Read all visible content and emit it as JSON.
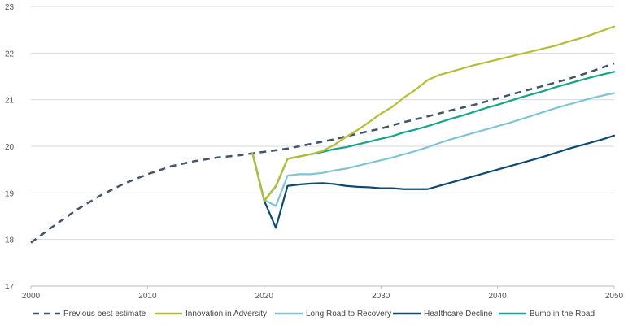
{
  "chart_data": {
    "type": "line",
    "title": "",
    "xlabel": "",
    "ylabel": "",
    "xlim": [
      2000,
      2050
    ],
    "ylim": [
      17,
      23
    ],
    "x_ticks": [
      "2000",
      "2010",
      "2020",
      "2030",
      "2040",
      "2050"
    ],
    "y_ticks": [
      "17",
      "18",
      "19",
      "20",
      "21",
      "22",
      "23"
    ],
    "grid": "horizontal",
    "legend_position": "bottom",
    "series": [
      {
        "name": "Previous best estimate",
        "color": "#44546a",
        "style": "dashed",
        "points": [
          [
            2000,
            17.93
          ],
          [
            2002,
            18.3
          ],
          [
            2004,
            18.65
          ],
          [
            2006,
            18.95
          ],
          [
            2008,
            19.2
          ],
          [
            2010,
            19.4
          ],
          [
            2012,
            19.57
          ],
          [
            2014,
            19.68
          ],
          [
            2016,
            19.76
          ],
          [
            2018,
            19.81
          ],
          [
            2019,
            19.85
          ],
          [
            2020,
            19.88
          ],
          [
            2022,
            19.95
          ],
          [
            2024,
            20.05
          ],
          [
            2026,
            20.15
          ],
          [
            2028,
            20.27
          ],
          [
            2030,
            20.38
          ],
          [
            2032,
            20.52
          ],
          [
            2034,
            20.64
          ],
          [
            2036,
            20.77
          ],
          [
            2038,
            20.89
          ],
          [
            2040,
            21.03
          ],
          [
            2042,
            21.17
          ],
          [
            2044,
            21.3
          ],
          [
            2046,
            21.44
          ],
          [
            2048,
            21.6
          ],
          [
            2050,
            21.78
          ]
        ]
      },
      {
        "name": "Innovation in Adversity",
        "color": "#b5bd35",
        "style": "solid",
        "points": [
          [
            2019,
            19.85
          ],
          [
            2020,
            18.83
          ],
          [
            2021,
            19.15
          ],
          [
            2022,
            19.73
          ],
          [
            2023,
            19.78
          ],
          [
            2024,
            19.83
          ],
          [
            2025,
            19.9
          ],
          [
            2026,
            20.03
          ],
          [
            2027,
            20.2
          ],
          [
            2028,
            20.35
          ],
          [
            2029,
            20.52
          ],
          [
            2030,
            20.7
          ],
          [
            2031,
            20.85
          ],
          [
            2032,
            21.05
          ],
          [
            2033,
            21.22
          ],
          [
            2034,
            21.42
          ],
          [
            2035,
            21.53
          ],
          [
            2036,
            21.6
          ],
          [
            2037,
            21.67
          ],
          [
            2038,
            21.74
          ],
          [
            2039,
            21.8
          ],
          [
            2040,
            21.86
          ],
          [
            2041,
            21.92
          ],
          [
            2042,
            21.98
          ],
          [
            2043,
            22.04
          ],
          [
            2044,
            22.1
          ],
          [
            2045,
            22.16
          ],
          [
            2046,
            22.24
          ],
          [
            2047,
            22.31
          ],
          [
            2048,
            22.39
          ],
          [
            2049,
            22.48
          ],
          [
            2050,
            22.57
          ]
        ]
      },
      {
        "name": "Long Road to Recovery",
        "color": "#7fc5d1",
        "style": "solid",
        "points": [
          [
            2019,
            19.85
          ],
          [
            2020,
            18.85
          ],
          [
            2021,
            18.72
          ],
          [
            2022,
            19.37
          ],
          [
            2023,
            19.4
          ],
          [
            2024,
            19.4
          ],
          [
            2025,
            19.43
          ],
          [
            2026,
            19.48
          ],
          [
            2027,
            19.52
          ],
          [
            2028,
            19.58
          ],
          [
            2029,
            19.64
          ],
          [
            2030,
            19.7
          ],
          [
            2031,
            19.76
          ],
          [
            2032,
            19.83
          ],
          [
            2033,
            19.9
          ],
          [
            2034,
            19.98
          ],
          [
            2035,
            20.07
          ],
          [
            2036,
            20.15
          ],
          [
            2037,
            20.22
          ],
          [
            2038,
            20.29
          ],
          [
            2039,
            20.36
          ],
          [
            2040,
            20.43
          ],
          [
            2041,
            20.5
          ],
          [
            2042,
            20.58
          ],
          [
            2043,
            20.66
          ],
          [
            2044,
            20.74
          ],
          [
            2045,
            20.82
          ],
          [
            2046,
            20.89
          ],
          [
            2047,
            20.96
          ],
          [
            2048,
            21.03
          ],
          [
            2049,
            21.09
          ],
          [
            2050,
            21.14
          ]
        ]
      },
      {
        "name": "Healthcare Decline",
        "color": "#0e4a6e",
        "style": "solid",
        "points": [
          [
            2019,
            19.85
          ],
          [
            2020,
            18.83
          ],
          [
            2021,
            18.25
          ],
          [
            2022,
            19.15
          ],
          [
            2023,
            19.18
          ],
          [
            2024,
            19.2
          ],
          [
            2025,
            19.21
          ],
          [
            2026,
            19.19
          ],
          [
            2027,
            19.15
          ],
          [
            2028,
            19.13
          ],
          [
            2029,
            19.12
          ],
          [
            2030,
            19.1
          ],
          [
            2031,
            19.1
          ],
          [
            2032,
            19.08
          ],
          [
            2033,
            19.08
          ],
          [
            2034,
            19.08
          ],
          [
            2035,
            19.15
          ],
          [
            2036,
            19.22
          ],
          [
            2037,
            19.29
          ],
          [
            2038,
            19.36
          ],
          [
            2039,
            19.43
          ],
          [
            2040,
            19.5
          ],
          [
            2041,
            19.57
          ],
          [
            2042,
            19.64
          ],
          [
            2043,
            19.71
          ],
          [
            2044,
            19.78
          ],
          [
            2045,
            19.86
          ],
          [
            2046,
            19.94
          ],
          [
            2047,
            20.01
          ],
          [
            2048,
            20.08
          ],
          [
            2049,
            20.15
          ],
          [
            2050,
            20.23
          ]
        ]
      },
      {
        "name": "Bump in the Road",
        "color": "#13a589",
        "style": "solid",
        "points": [
          [
            2019,
            19.85
          ],
          [
            2020,
            18.83
          ],
          [
            2021,
            19.14
          ],
          [
            2022,
            19.73
          ],
          [
            2023,
            19.78
          ],
          [
            2024,
            19.83
          ],
          [
            2025,
            19.88
          ],
          [
            2026,
            19.94
          ],
          [
            2027,
            19.98
          ],
          [
            2028,
            20.04
          ],
          [
            2029,
            20.1
          ],
          [
            2030,
            20.16
          ],
          [
            2031,
            20.22
          ],
          [
            2032,
            20.3
          ],
          [
            2033,
            20.36
          ],
          [
            2034,
            20.43
          ],
          [
            2035,
            20.51
          ],
          [
            2036,
            20.59
          ],
          [
            2037,
            20.66
          ],
          [
            2038,
            20.74
          ],
          [
            2039,
            20.82
          ],
          [
            2040,
            20.89
          ],
          [
            2041,
            20.97
          ],
          [
            2042,
            21.05
          ],
          [
            2043,
            21.12
          ],
          [
            2044,
            21.19
          ],
          [
            2045,
            21.27
          ],
          [
            2046,
            21.34
          ],
          [
            2047,
            21.41
          ],
          [
            2048,
            21.48
          ],
          [
            2049,
            21.54
          ],
          [
            2050,
            21.6
          ]
        ]
      }
    ]
  }
}
